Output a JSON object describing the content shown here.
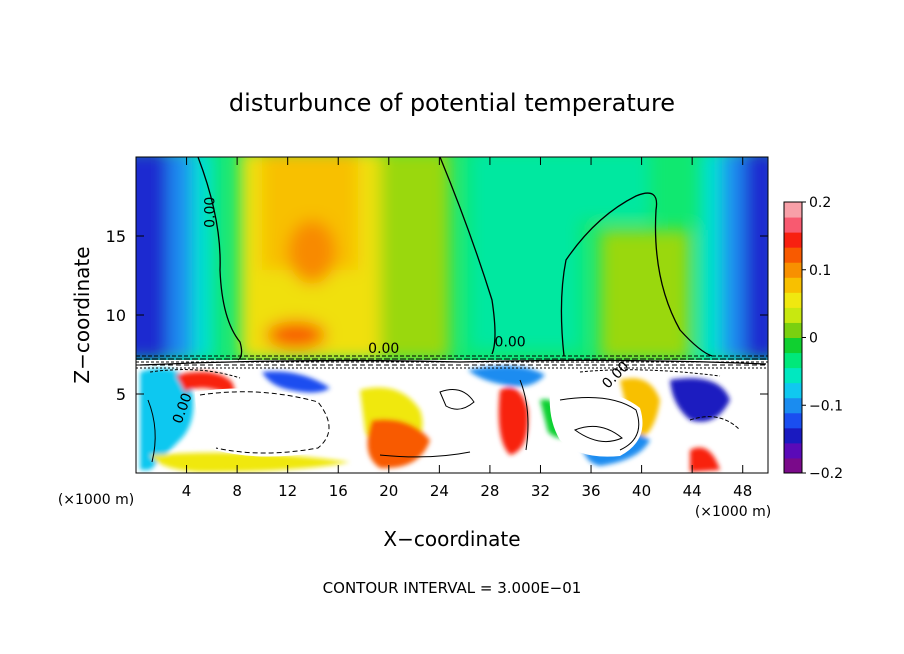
{
  "chart_data": {
    "type": "heatmap",
    "title": "disturbunce of potential temperature",
    "xlabel": "X−coordinate",
    "ylabel": "Z−coordinate",
    "x_unit_left": "(×1000 m)",
    "x_unit_right": "(×1000 m)",
    "footer": "CONTOUR INTERVAL = 3.000E−01",
    "xlim": [
      0,
      50
    ],
    "ylim": [
      0,
      20
    ],
    "x_ticks": [
      4,
      8,
      12,
      16,
      20,
      24,
      28,
      32,
      36,
      40,
      44,
      48
    ],
    "y_ticks": [
      5,
      10,
      15
    ],
    "colorbar": {
      "min": -0.2,
      "max": 0.2,
      "tick_values": [
        0.2,
        0.1,
        0,
        -0.1,
        -0.2
      ],
      "tick_labels": [
        "0.2",
        "0.1",
        "0",
        "−0.1",
        "−0.2"
      ],
      "colors": [
        "#7a0a8a",
        "#5a0ab8",
        "#1a1ac0",
        "#1a4ef0",
        "#1a8cf0",
        "#10c8f0",
        "#00e8c0",
        "#00e87a",
        "#10d030",
        "#7ad010",
        "#c8e810",
        "#f0e810",
        "#f8c000",
        "#f89000",
        "#f85a00",
        "#f82010",
        "#f85a70",
        "#f8a0a8"
      ]
    },
    "contour_labels": [
      {
        "text": "0.00",
        "x": 6.2,
        "z": 16.5
      },
      {
        "text": "0.00",
        "x": 19.6,
        "z": 7.6
      },
      {
        "text": "0.00",
        "x": 29.6,
        "z": 8.0
      },
      {
        "text": "0.00",
        "x": 38.2,
        "z": 6.0
      },
      {
        "text": "0.00",
        "x": 4.0,
        "z": 4.0
      }
    ]
  }
}
